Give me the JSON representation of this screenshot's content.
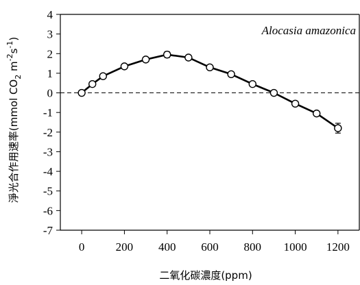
{
  "chart_data": {
    "type": "line",
    "annotation": "Alocasia amazonica",
    "xlabel": "二氧化碳濃度(ppm)",
    "ylabel_main": "淨光合作用速率(mmol CO",
    "ylabel_sub2": "2",
    "ylabel_mid": " m",
    "ylabel_sup1": "-2",
    "ylabel_s": "s",
    "ylabel_sup2": "-1",
    "ylabel_end": ")",
    "xlim": [
      -100,
      1300
    ],
    "ylim": [
      -7,
      4
    ],
    "xticks": [
      0,
      200,
      400,
      600,
      800,
      1000,
      1200
    ],
    "yticks": [
      4,
      3,
      2,
      1,
      0,
      -1,
      -2,
      -3,
      -4,
      -5,
      -6,
      -7
    ],
    "reference_line": {
      "y": 0,
      "style": "dashed"
    },
    "grid": false,
    "series": [
      {
        "x": [
          0,
          50,
          100,
          200,
          300,
          400,
          500,
          600,
          700,
          800,
          900,
          1000,
          1100,
          1200
        ],
        "y": [
          0.0,
          0.45,
          0.85,
          1.35,
          1.7,
          1.95,
          1.8,
          1.3,
          0.95,
          0.45,
          0.0,
          -0.55,
          -1.05,
          -1.8
        ],
        "err": [
          0.05,
          0.05,
          0.08,
          0.08,
          0.12,
          0.15,
          0.12,
          0.08,
          0.08,
          0.08,
          0.05,
          0.12,
          0.08,
          0.25
        ]
      }
    ]
  }
}
